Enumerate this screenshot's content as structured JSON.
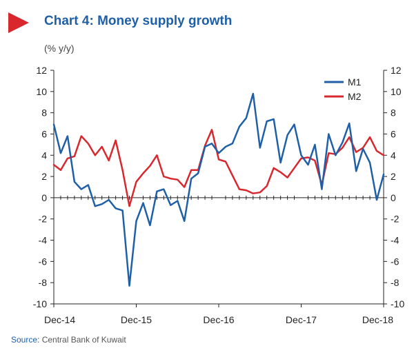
{
  "header": {
    "title": "Chart 4: Money supply growth",
    "subtitle": "(% y/y)"
  },
  "source": {
    "label": "Source:",
    "text": "Central Bank of Kuwait"
  },
  "colors": {
    "accent": "#d9272e",
    "title": "#1f5fa8",
    "m1": "#1f5fa8",
    "m2": "#d9272e"
  },
  "chart_data": {
    "type": "line",
    "title": "Chart 4: Money supply growth",
    "ylabel": "(% y/y)",
    "xlabel": "",
    "ylim": [
      -10,
      12
    ],
    "y2lim": [
      -10,
      12
    ],
    "yticks": [
      -10,
      -8,
      -6,
      -4,
      -2,
      0,
      2,
      4,
      6,
      8,
      10,
      12
    ],
    "x_tick_labels": [
      "Dec-14",
      "Dec-15",
      "Dec-16",
      "Dec-17",
      "Dec-18"
    ],
    "x": [
      "Dec-14",
      "Jan-15",
      "Feb-15",
      "Mar-15",
      "Apr-15",
      "May-15",
      "Jun-15",
      "Jul-15",
      "Aug-15",
      "Sep-15",
      "Oct-15",
      "Nov-15",
      "Dec-15",
      "Jan-16",
      "Feb-16",
      "Mar-16",
      "Apr-16",
      "May-16",
      "Jun-16",
      "Jul-16",
      "Aug-16",
      "Sep-16",
      "Oct-16",
      "Nov-16",
      "Dec-16",
      "Jan-17",
      "Feb-17",
      "Mar-17",
      "Apr-17",
      "May-17",
      "Jun-17",
      "Jul-17",
      "Aug-17",
      "Sep-17",
      "Oct-17",
      "Nov-17",
      "Dec-17",
      "Jan-18",
      "Feb-18",
      "Mar-18",
      "Apr-18",
      "May-18",
      "Jun-18",
      "Jul-18",
      "Aug-18",
      "Sep-18",
      "Oct-18",
      "Nov-18",
      "Dec-18"
    ],
    "legend_position": "top-right",
    "grid": false,
    "series": [
      {
        "name": "M1",
        "color": "#1f5fa8",
        "values": [
          6.9,
          4.2,
          5.8,
          1.5,
          0.8,
          1.2,
          -0.8,
          -0.6,
          -0.2,
          -1.0,
          -1.2,
          -8.3,
          -2.2,
          -0.5,
          -2.6,
          0.6,
          0.8,
          -0.7,
          -0.3,
          -2.2,
          1.8,
          2.3,
          4.8,
          5.1,
          4.2,
          4.8,
          5.1,
          6.7,
          7.5,
          9.8,
          4.7,
          7.2,
          7.4,
          3.3,
          5.9,
          6.9,
          4.0,
          3.1,
          5.0,
          0.8,
          6.0,
          4.0,
          5.2,
          7.0,
          2.5,
          4.6,
          3.3,
          -0.2,
          2.2
        ]
      },
      {
        "name": "M2",
        "color": "#d9272e",
        "values": [
          3.1,
          2.6,
          3.7,
          3.9,
          5.8,
          5.1,
          4.0,
          4.8,
          3.5,
          5.4,
          2.6,
          -0.8,
          1.5,
          2.3,
          3.0,
          4.0,
          2.0,
          1.8,
          1.7,
          1.0,
          2.6,
          2.6,
          4.9,
          6.4,
          3.6,
          3.4,
          2.1,
          0.8,
          0.7,
          0.4,
          0.5,
          1.1,
          2.8,
          2.4,
          1.9,
          2.8,
          3.7,
          3.8,
          3.5,
          1.2,
          4.2,
          4.1,
          4.7,
          5.7,
          4.3,
          4.7,
          5.7,
          4.4,
          4.0
        ]
      }
    ]
  }
}
